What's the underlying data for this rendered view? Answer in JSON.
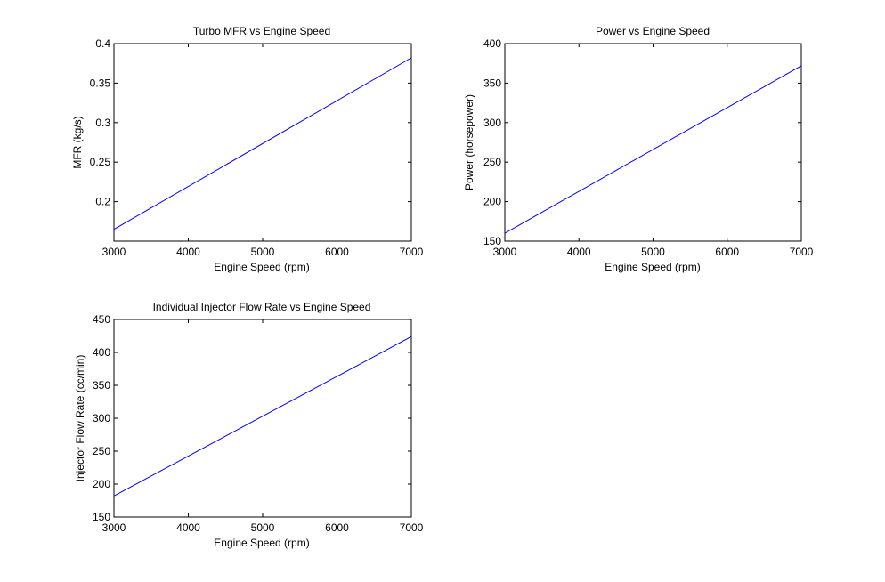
{
  "figure": {
    "background": "#ffffff",
    "line_color": "#0000ff"
  },
  "chart_data": [
    {
      "type": "line",
      "title": "Turbo MFR vs Engine Speed",
      "xlabel": "Engine Speed (rpm)",
      "ylabel": "MFR (kg/s)",
      "xlim": [
        3000,
        7000
      ],
      "ylim": [
        0.15,
        0.4
      ],
      "xticks": [
        3000,
        4000,
        5000,
        6000,
        7000
      ],
      "yticks": [
        0.2,
        0.25,
        0.3,
        0.35,
        0.4
      ],
      "ytick_labels": [
        "0.2",
        "0.25",
        "0.3",
        "0.35",
        "0.4"
      ],
      "series": [
        {
          "x": [
            3000,
            7000
          ],
          "y": [
            0.165,
            0.382
          ]
        }
      ],
      "grid": false
    },
    {
      "type": "line",
      "title": "Power vs Engine Speed",
      "xlabel": "Engine Speed (rpm)",
      "ylabel": "Power (horsepower)",
      "xlim": [
        3000,
        7000
      ],
      "ylim": [
        150,
        400
      ],
      "xticks": [
        3000,
        4000,
        5000,
        6000,
        7000
      ],
      "yticks": [
        150,
        200,
        250,
        300,
        350,
        400
      ],
      "ytick_labels": [
        "150",
        "200",
        "250",
        "300",
        "350",
        "400"
      ],
      "series": [
        {
          "x": [
            3000,
            7000
          ],
          "y": [
            160,
            372
          ]
        }
      ],
      "grid": false
    },
    {
      "type": "line",
      "title": "Individual Injector Flow Rate vs Engine Speed",
      "xlabel": "Engine Speed (rpm)",
      "ylabel": "Injector Flow Rate (cc/min)",
      "xlim": [
        3000,
        7000
      ],
      "ylim": [
        150,
        450
      ],
      "xticks": [
        3000,
        4000,
        5000,
        6000,
        7000
      ],
      "yticks": [
        150,
        200,
        250,
        300,
        350,
        400,
        450
      ],
      "ytick_labels": [
        "150",
        "200",
        "250",
        "300",
        "350",
        "400",
        "450"
      ],
      "series": [
        {
          "x": [
            3000,
            7000
          ],
          "y": [
            182,
            424
          ]
        }
      ],
      "grid": false
    }
  ]
}
